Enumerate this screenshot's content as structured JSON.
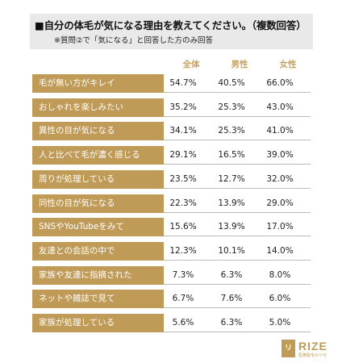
{
  "header": {
    "title": "■自分の体毛が気になる理由を教えてください。（複数回答）",
    "note": "※質問②で「気になる」と回答した方のみ回答"
  },
  "chart_data": {
    "type": "table",
    "columns": [
      "全体",
      "男性",
      "女性"
    ],
    "rows": [
      {
        "label": "毛が無い方がキレイ",
        "values": [
          "54.7%",
          "40.5%",
          "66.0%"
        ]
      },
      {
        "label": "おしゃれを楽しみたい",
        "values": [
          "35.2%",
          "25.3%",
          "43.0%"
        ]
      },
      {
        "label": "異性の目が気になる",
        "values": [
          "34.1%",
          "25.3%",
          "41.0%"
        ]
      },
      {
        "label": "人と比べて毛が濃く感じる",
        "values": [
          "29.1%",
          "16.5%",
          "39.0%"
        ]
      },
      {
        "label": "周りが処理している",
        "values": [
          "23.5%",
          "12.7%",
          "32.0%"
        ]
      },
      {
        "label": "同性の目が気になる",
        "values": [
          "22.3%",
          "13.9%",
          "29.0%"
        ]
      },
      {
        "label": "SNSやYouTubeをみて",
        "values": [
          "15.6%",
          "13.9%",
          "17.0%"
        ]
      },
      {
        "label": "友達との会話の中で",
        "values": [
          "12.3%",
          "10.1%",
          "14.0%"
        ]
      },
      {
        "label": "家族や友達に指摘された",
        "values": [
          "7.3%",
          "6.3%",
          "8.0%"
        ]
      },
      {
        "label": "ネットや雑誌で見て",
        "values": [
          "6.7%",
          "7.6%",
          "6.0%"
        ]
      },
      {
        "label": "家族が処理している",
        "values": [
          "5.6%",
          "6.3%",
          "5.0%"
        ]
      }
    ]
  },
  "logo": {
    "mark": "リゼ",
    "word": "RIZE",
    "tag": "医療脱毛のリゼ",
    "color": "#c09a57"
  }
}
